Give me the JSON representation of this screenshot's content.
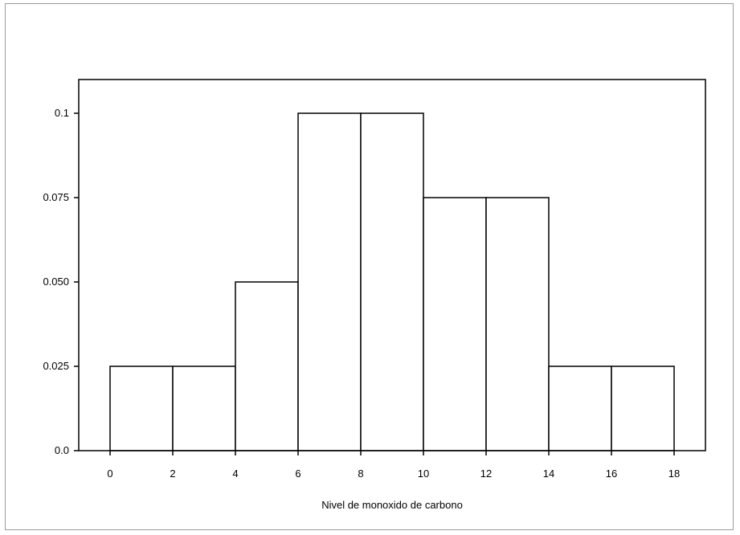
{
  "chart_data": {
    "type": "bar",
    "subtype": "histogram",
    "title": "",
    "xlabel": "Nivel de monoxido de carbono",
    "ylabel": "",
    "xlim": [
      -1,
      19
    ],
    "ylim": [
      0,
      0.11
    ],
    "grid": false,
    "legend": "none",
    "bin_edges": [
      0,
      2,
      4,
      6,
      8,
      10,
      12,
      14,
      16,
      18
    ],
    "values": [
      0.025,
      0.025,
      0.05,
      0.1,
      0.1,
      0.075,
      0.075,
      0.025,
      0.025
    ],
    "x_ticks": [
      0,
      2,
      4,
      6,
      8,
      10,
      12,
      14,
      16,
      18
    ],
    "x_tick_labels": [
      "0",
      "2",
      "4",
      "6",
      "8",
      "10",
      "12",
      "14",
      "16",
      "18"
    ],
    "y_ticks": [
      0,
      0.025,
      0.05,
      0.075,
      0.1
    ],
    "y_tick_labels": [
      "0.0",
      "0.025",
      "0.050",
      "0.075",
      "0.1"
    ],
    "colors": {
      "bar_fill": "#ffffff",
      "bar_stroke": "#000000",
      "axis": "#000000"
    }
  }
}
